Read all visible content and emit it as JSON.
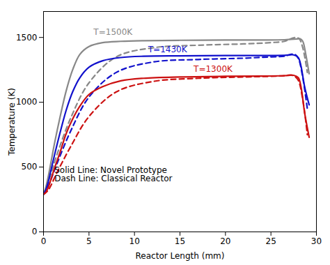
{
  "chart_data": {
    "type": "line",
    "xlabel": "Reactor Length (mm)",
    "ylabel": "Temperature (K)",
    "xlim": [
      0,
      30
    ],
    "ylim": [
      0,
      1700
    ],
    "xticks": [
      0,
      5,
      10,
      15,
      20,
      25,
      30
    ],
    "yticks": [
      0,
      500,
      1000,
      1500
    ],
    "grid": false,
    "series": [
      {
        "color": "#888888",
        "line_style": "solid",
        "x": [
          0,
          0.2,
          0.5,
          0.8,
          1.2,
          1.8,
          2.5,
          3.2,
          4.0,
          5.0,
          6.5,
          8.5,
          11.0,
          15.0,
          20.0,
          24.0,
          26.5,
          27.8,
          28.2,
          28.5,
          28.8,
          29.2
        ],
        "values": [
          290,
          330,
          420,
          530,
          680,
          880,
          1090,
          1250,
          1370,
          1430,
          1460,
          1470,
          1475,
          1478,
          1480,
          1480,
          1482,
          1488,
          1490,
          1470,
          1380,
          1220
        ]
      },
      {
        "color": "#888888",
        "line_style": "dashed",
        "x": [
          0,
          0.5,
          1.5,
          3.0,
          5.0,
          8.0,
          12.0,
          17.0,
          22.0,
          25.0,
          26.5,
          27.2,
          27.7,
          28.1,
          28.5,
          29.0
        ],
        "values": [
          290,
          380,
          600,
          880,
          1150,
          1350,
          1420,
          1440,
          1450,
          1460,
          1470,
          1490,
          1500,
          1490,
          1420,
          1230
        ]
      },
      {
        "color": "#1111cc",
        "line_style": "solid",
        "x": [
          0,
          0.2,
          0.5,
          0.8,
          1.2,
          1.8,
          2.5,
          3.2,
          4.0,
          5.0,
          6.5,
          8.5,
          11.0,
          15.0,
          20.0,
          24.0,
          26.5,
          27.5,
          28.0,
          28.3,
          28.7,
          29.2
        ],
        "values": [
          290,
          315,
          380,
          470,
          590,
          760,
          940,
          1080,
          1190,
          1270,
          1320,
          1345,
          1355,
          1358,
          1360,
          1360,
          1362,
          1365,
          1345,
          1280,
          1120,
          980
        ]
      },
      {
        "color": "#1111cc",
        "line_style": "dashed",
        "x": [
          0,
          0.5,
          1.5,
          3.0,
          5.0,
          8.0,
          12.0,
          17.0,
          22.0,
          25.0,
          26.5,
          27.2,
          27.6,
          28.0,
          28.5,
          29.0
        ],
        "values": [
          290,
          350,
          530,
          780,
          1040,
          1230,
          1310,
          1330,
          1340,
          1350,
          1355,
          1370,
          1370,
          1340,
          1190,
          950
        ]
      },
      {
        "color": "#cc1111",
        "line_style": "solid",
        "x": [
          0,
          0.2,
          0.5,
          0.8,
          1.2,
          1.8,
          2.5,
          3.2,
          4.0,
          5.0,
          6.5,
          8.5,
          11.0,
          15.0,
          20.0,
          24.0,
          26.5,
          27.5,
          28.0,
          28.3,
          28.7,
          29.2
        ],
        "values": [
          290,
          300,
          340,
          400,
          490,
          610,
          760,
          870,
          970,
          1060,
          1120,
          1165,
          1185,
          1195,
          1200,
          1202,
          1205,
          1208,
          1190,
          1120,
          920,
          730
        ]
      },
      {
        "color": "#cc1111",
        "line_style": "dashed",
        "x": [
          0,
          0.5,
          1.5,
          3.0,
          5.0,
          8.0,
          12.0,
          17.0,
          22.0,
          25.0,
          26.5,
          27.2,
          27.6,
          28.0,
          28.5,
          29.0
        ],
        "values": [
          290,
          320,
          460,
          660,
          890,
          1080,
          1160,
          1185,
          1195,
          1200,
          1205,
          1210,
          1200,
          1170,
          1020,
          750
        ]
      }
    ],
    "annotations": [
      {
        "text": "T=1500K",
        "x": 5.5,
        "y": 1540,
        "color": "#888888"
      },
      {
        "text": "T=1430K",
        "x": 11.5,
        "y": 1405,
        "color": "#1111cc"
      },
      {
        "text": "T=1300K",
        "x": 16.5,
        "y": 1255,
        "color": "#cc1111"
      },
      {
        "text": "Solid Line: Novel Prototype\nDash Line: Classical Reactor",
        "x": 1.2,
        "y": 390,
        "color": "#000000",
        "anchor": "bottom"
      }
    ]
  }
}
